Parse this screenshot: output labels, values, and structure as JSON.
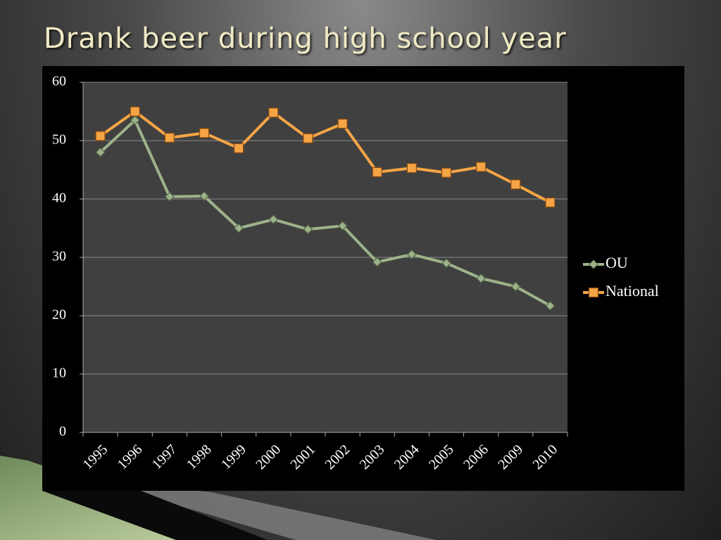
{
  "chart_data": {
    "type": "line",
    "title": "Drank beer during high school year",
    "categories": [
      "1995",
      "1996",
      "1997",
      "1998",
      "1999",
      "2000",
      "2001",
      "2002",
      "2003",
      "2004",
      "2005",
      "2006",
      "2009",
      "2010"
    ],
    "series": [
      {
        "name": "OU",
        "color": "#9db38a",
        "marker": "diamond",
        "values": [
          48,
          53.5,
          40.4,
          40.5,
          35,
          36.5,
          34.8,
          35.4,
          29.2,
          30.5,
          29,
          26.4,
          25,
          21.7
        ]
      },
      {
        "name": "National",
        "color": "#f5a545",
        "marker": "square",
        "values": [
          50.8,
          55,
          50.5,
          51.3,
          48.7,
          54.8,
          50.4,
          52.9,
          44.6,
          45.3,
          44.5,
          45.5,
          42.5,
          39.4
        ]
      }
    ],
    "ylim": [
      0,
      60
    ],
    "yticks": [
      0,
      10,
      20,
      30,
      40,
      50,
      60
    ],
    "grid": true,
    "legend": "right"
  }
}
